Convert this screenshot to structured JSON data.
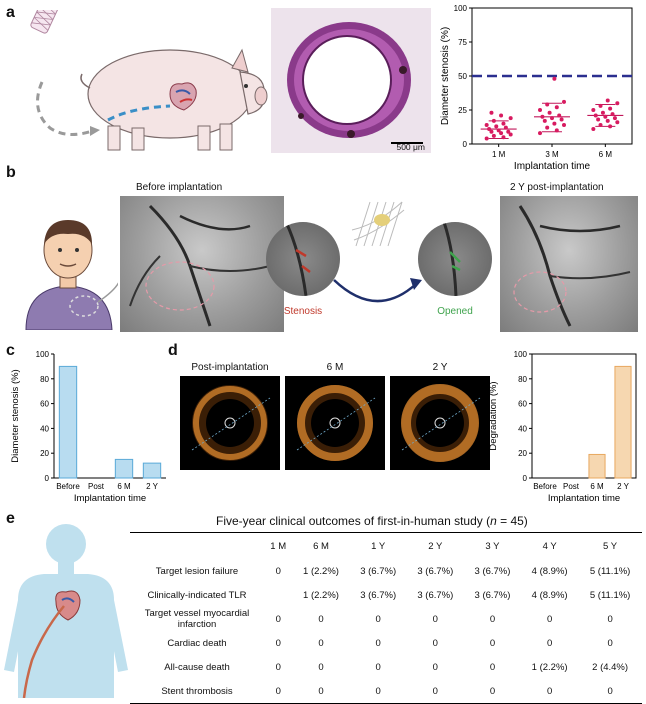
{
  "panels": {
    "a": "a",
    "b": "b",
    "c": "c",
    "d": "d",
    "e": "e"
  },
  "panel_a": {
    "scale_bar": "500 μm",
    "chart_data": {
      "type": "scatter",
      "categories": [
        "1 M",
        "3 M",
        "6 M"
      ],
      "xlabel": "Implantation time",
      "ylabel": "Diameter stenosis (%)",
      "ylim": [
        0,
        100
      ],
      "yticks": [
        "0",
        "25",
        "50",
        "75",
        "100"
      ],
      "threshold": 50,
      "series": [
        {
          "category": "1 M",
          "mean": 11,
          "sd_low": 4,
          "sd_high": 17,
          "points": [
            4,
            5,
            6,
            7,
            8,
            9,
            9,
            10,
            11,
            12,
            13,
            14,
            15,
            17,
            19,
            21,
            23
          ]
        },
        {
          "category": "3 M",
          "mean": 20,
          "sd_low": 9,
          "sd_high": 30,
          "points": [
            8,
            10,
            12,
            14,
            15,
            17,
            18,
            19,
            20,
            21,
            23,
            25,
            27,
            29,
            31,
            48
          ]
        },
        {
          "category": "6 M",
          "mean": 21,
          "sd_low": 13,
          "sd_high": 29,
          "points": [
            11,
            13,
            14,
            16,
            17,
            18,
            19,
            20,
            21,
            22,
            23,
            25,
            26,
            28,
            30,
            32
          ]
        }
      ]
    }
  },
  "panel_b": {
    "before_title": "Before implantation",
    "after_title": "2 Y post-implantation",
    "stenosis_label": "Stenosis",
    "opened_label": "Opened",
    "colors": {
      "stenosis": "#c0392b",
      "opened": "#3fa34d",
      "arrow": "#1f2f6b"
    }
  },
  "panel_c": {
    "chart_data": {
      "type": "bar",
      "categories": [
        "Before",
        "Post",
        "6 M",
        "2 Y"
      ],
      "values": [
        90,
        0,
        15,
        12
      ],
      "xlabel": "Implantation time",
      "ylabel": "Diameter stenosis (%)",
      "ylim": [
        0,
        100
      ],
      "yticks": [
        "0",
        "20",
        "40",
        "60",
        "80",
        "100"
      ],
      "color": "#b8dcf0",
      "edge": "#5aaad8"
    }
  },
  "panel_d": {
    "oct_titles": [
      "Post-implantation",
      "6 M",
      "2 Y"
    ],
    "chart_data": {
      "type": "bar",
      "categories": [
        "Before",
        "Post",
        "6 M",
        "2 Y"
      ],
      "values": [
        0,
        0,
        19,
        90
      ],
      "xlabel": "Implantation time",
      "ylabel": "Degradation (%)",
      "ylim": [
        0,
        100
      ],
      "yticks": [
        "0",
        "20",
        "40",
        "60",
        "80",
        "100"
      ],
      "color": "#f6d7b0",
      "edge": "#e8a860"
    }
  },
  "panel_e": {
    "title_prefix": "Five-year clinical outcomes of first-in-human study (",
    "title_n": "n",
    "title_suffix": " = 45)",
    "columns": [
      "1 M",
      "6 M",
      "1 Y",
      "2 Y",
      "3 Y",
      "4 Y",
      "5 Y"
    ],
    "rows": [
      {
        "label": "Target lesion failure",
        "values": [
          "0",
          "1 (2.2%)",
          "3 (6.7%)",
          "3 (6.7%)",
          "3 (6.7%)",
          "4 (8.9%)",
          "5 (11.1%)"
        ]
      },
      {
        "label": "Clinically-indicated TLR",
        "values": [
          "",
          "1 (2.2%)",
          "3 (6.7%)",
          "3 (6.7%)",
          "3 (6.7%)",
          "4 (8.9%)",
          "5 (11.1%)"
        ]
      },
      {
        "label": "Target vessel myocardial infarction",
        "values": [
          "0",
          "0",
          "0",
          "0",
          "0",
          "0",
          "0"
        ]
      },
      {
        "label": "Cardiac death",
        "values": [
          "0",
          "0",
          "0",
          "0",
          "0",
          "0",
          "0"
        ]
      },
      {
        "label": "All-cause death",
        "values": [
          "0",
          "0",
          "0",
          "0",
          "0",
          "1 (2.2%)",
          "2 (4.4%)"
        ]
      },
      {
        "label": "Stent thrombosis",
        "values": [
          "0",
          "0",
          "0",
          "0",
          "0",
          "0",
          "0"
        ]
      }
    ]
  }
}
